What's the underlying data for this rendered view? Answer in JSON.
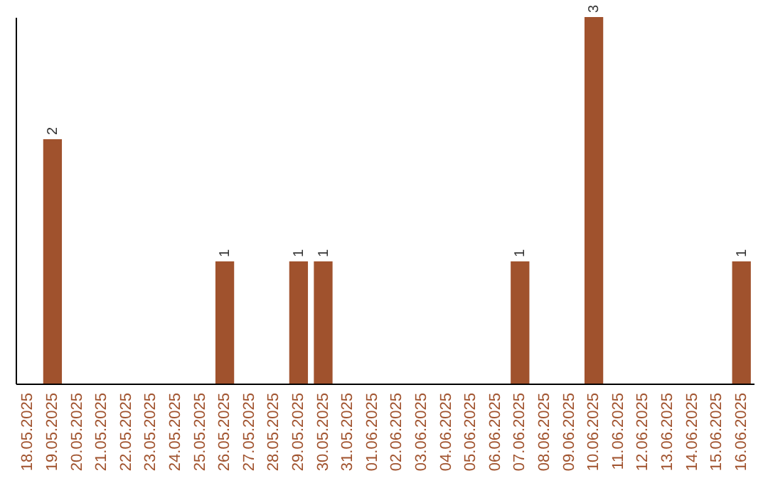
{
  "chart_data": {
    "type": "bar",
    "categories": [
      "18.05.2025",
      "19.05.2025",
      "20.05.2025",
      "21.05.2025",
      "22.05.2025",
      "23.05.2025",
      "24.05.2025",
      "25.05.2025",
      "26.05.2025",
      "27.05.2025",
      "28.05.2025",
      "29.05.2025",
      "30.05.2025",
      "31.05.2025",
      "01.06.2025",
      "02.06.2025",
      "03.06.2025",
      "04.06.2025",
      "05.06.2025",
      "06.06.2025",
      "07.06.2025",
      "08.06.2025",
      "09.06.2025",
      "10.06.2025",
      "11.06.2025",
      "12.06.2025",
      "13.06.2025",
      "14.06.2025",
      "15.06.2025",
      "16.06.2025"
    ],
    "values": [
      0,
      2,
      0,
      0,
      0,
      0,
      0,
      0,
      1,
      0,
      0,
      1,
      1,
      0,
      0,
      0,
      0,
      0,
      0,
      0,
      1,
      0,
      0,
      3,
      0,
      0,
      0,
      0,
      0,
      1
    ],
    "value_labels": [
      null,
      "2",
      null,
      null,
      null,
      null,
      null,
      null,
      "1",
      null,
      null,
      "1",
      "1",
      null,
      null,
      null,
      null,
      null,
      null,
      null,
      "1",
      null,
      null,
      "3",
      null,
      null,
      null,
      null,
      null,
      "1"
    ],
    "color": "#a0522d",
    "grid": false,
    "tick_labels": "x"
  }
}
